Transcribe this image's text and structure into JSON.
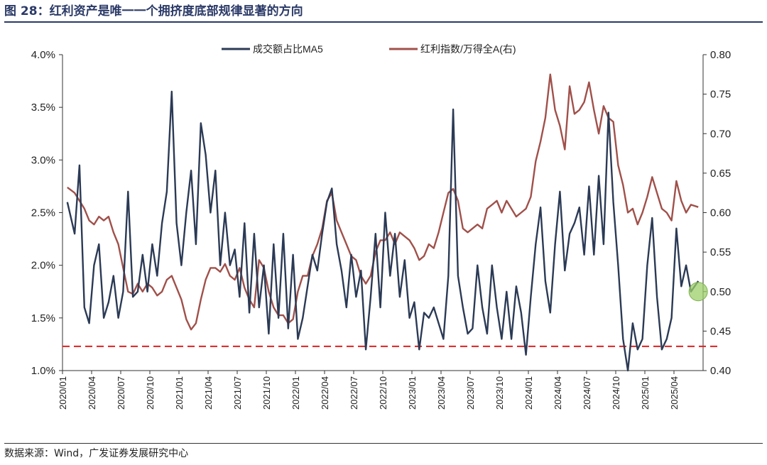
{
  "title": "图 28：红利资产是唯一一个拥挤度底部规律显著的方向",
  "source": "数据来源：Wind，广发证券发展研究中心",
  "chart_data": {
    "type": "line",
    "title": "图 28：红利资产是唯一一个拥挤度底部规律显著的方向",
    "legend_position": "top-center",
    "grid": false,
    "x_ticks": [
      "2020/01",
      "2020/04",
      "2020/07",
      "2020/10",
      "2021/01",
      "2021/04",
      "2021/07",
      "2021/10",
      "2022/01",
      "2022/04",
      "2022/07",
      "2022/10",
      "2023/01",
      "2023/04",
      "2023/07",
      "2023/10",
      "2024/01",
      "2024/04",
      "2024/07",
      "2024/10",
      "2025/01",
      "2025/04"
    ],
    "x_range": [
      "2020/01",
      "2025/06"
    ],
    "y_left": {
      "ticks": [
        "1.0%",
        "1.5%",
        "2.0%",
        "2.5%",
        "3.0%",
        "3.5%",
        "4.0%"
      ],
      "range": [
        1.0,
        4.0
      ],
      "unit": "%"
    },
    "y_right": {
      "ticks": [
        "0.40",
        "0.45",
        "0.50",
        "0.55",
        "0.60",
        "0.65",
        "0.70",
        "0.75",
        "0.80"
      ],
      "range": [
        0.4,
        0.8
      ]
    },
    "series": [
      {
        "name": "成交额占比MA5",
        "axis": "left",
        "color": "#2b3a55",
        "points": [
          [
            "2020/01",
            2.6
          ],
          [
            "2020/02",
            2.3
          ],
          [
            "2020/02",
            2.95
          ],
          [
            "2020/03",
            1.6
          ],
          [
            "2020/03",
            1.45
          ],
          [
            "2020/04",
            2.0
          ],
          [
            "2020/04",
            2.2
          ],
          [
            "2020/05",
            1.5
          ],
          [
            "2020/05",
            1.65
          ],
          [
            "2020/06",
            1.9
          ],
          [
            "2020/06",
            1.5
          ],
          [
            "2020/07",
            1.75
          ],
          [
            "2020/07",
            2.7
          ],
          [
            "2020/08",
            1.7
          ],
          [
            "2020/08",
            1.75
          ],
          [
            "2020/09",
            2.1
          ],
          [
            "2020/09",
            1.75
          ],
          [
            "2020/10",
            2.2
          ],
          [
            "2020/10",
            1.9
          ],
          [
            "2020/11",
            2.4
          ],
          [
            "2020/11",
            2.7
          ],
          [
            "2020/12",
            3.65
          ],
          [
            "2020/12",
            2.4
          ],
          [
            "2021/01",
            2.0
          ],
          [
            "2021/01",
            2.5
          ],
          [
            "2021/02",
            2.9
          ],
          [
            "2021/02",
            2.2
          ],
          [
            "2021/03",
            3.35
          ],
          [
            "2021/03",
            3.05
          ],
          [
            "2021/04",
            2.5
          ],
          [
            "2021/04",
            2.9
          ],
          [
            "2021/05",
            2.0
          ],
          [
            "2021/05",
            2.5
          ],
          [
            "2021/06",
            2.0
          ],
          [
            "2021/06",
            2.15
          ],
          [
            "2021/07",
            1.7
          ],
          [
            "2021/07",
            2.4
          ],
          [
            "2021/08",
            1.55
          ],
          [
            "2021/08",
            2.3
          ],
          [
            "2021/09",
            1.6
          ],
          [
            "2021/09",
            2.0
          ],
          [
            "2021/10",
            1.35
          ],
          [
            "2021/10",
            2.2
          ],
          [
            "2021/11",
            1.5
          ],
          [
            "2021/11",
            2.3
          ],
          [
            "2021/12",
            1.4
          ],
          [
            "2021/12",
            2.1
          ],
          [
            "2022/01",
            1.3
          ],
          [
            "2022/01",
            1.5
          ],
          [
            "2022/02",
            1.8
          ],
          [
            "2022/02",
            2.1
          ],
          [
            "2022/03",
            1.95
          ],
          [
            "2022/03",
            2.3
          ],
          [
            "2022/04",
            2.6
          ],
          [
            "2022/04",
            2.73
          ],
          [
            "2022/05",
            2.2
          ],
          [
            "2022/05",
            1.95
          ],
          [
            "2022/06",
            1.6
          ],
          [
            "2022/06",
            2.1
          ],
          [
            "2022/07",
            1.7
          ],
          [
            "2022/07",
            1.95
          ],
          [
            "2022/08",
            1.2
          ],
          [
            "2022/08",
            1.7
          ],
          [
            "2022/09",
            2.3
          ],
          [
            "2022/09",
            1.6
          ],
          [
            "2022/10",
            2.5
          ],
          [
            "2022/10",
            1.9
          ],
          [
            "2022/11",
            2.3
          ],
          [
            "2022/11",
            1.7
          ],
          [
            "2022/12",
            2.05
          ],
          [
            "2022/12",
            1.5
          ],
          [
            "2023/01",
            1.65
          ],
          [
            "2023/01",
            1.2
          ],
          [
            "2023/02",
            1.55
          ],
          [
            "2023/02",
            1.5
          ],
          [
            "2023/03",
            1.6
          ],
          [
            "2023/03",
            1.45
          ],
          [
            "2023/04",
            1.3
          ],
          [
            "2023/04",
            1.9
          ],
          [
            "2023/05",
            3.48
          ],
          [
            "2023/05",
            1.9
          ],
          [
            "2023/06",
            1.6
          ],
          [
            "2023/06",
            1.35
          ],
          [
            "2023/07",
            1.4
          ],
          [
            "2023/07",
            2.0
          ],
          [
            "2023/08",
            1.6
          ],
          [
            "2023/08",
            1.35
          ],
          [
            "2023/09",
            2.0
          ],
          [
            "2023/09",
            1.6
          ],
          [
            "2023/10",
            1.3
          ],
          [
            "2023/10",
            1.75
          ],
          [
            "2023/11",
            1.3
          ],
          [
            "2023/11",
            1.8
          ],
          [
            "2023/12",
            1.55
          ],
          [
            "2023/12",
            1.15
          ],
          [
            "2024/01",
            1.7
          ],
          [
            "2024/01",
            2.2
          ],
          [
            "2024/02",
            2.55
          ],
          [
            "2024/02",
            1.85
          ],
          [
            "2024/03",
            1.55
          ],
          [
            "2024/03",
            2.2
          ],
          [
            "2024/04",
            2.7
          ],
          [
            "2024/04",
            1.95
          ],
          [
            "2024/05",
            2.3
          ],
          [
            "2024/05",
            2.4
          ],
          [
            "2024/06",
            2.55
          ],
          [
            "2024/06",
            2.1
          ],
          [
            "2024/07",
            2.75
          ],
          [
            "2024/07",
            2.1
          ],
          [
            "2024/08",
            2.85
          ],
          [
            "2024/08",
            2.2
          ],
          [
            "2024/09",
            3.45
          ],
          [
            "2024/09",
            2.6
          ],
          [
            "2024/10",
            2.0
          ],
          [
            "2024/10",
            1.3
          ],
          [
            "2024/11",
            1.0
          ],
          [
            "2024/11",
            1.45
          ],
          [
            "2024/12",
            1.2
          ],
          [
            "2024/12",
            1.3
          ],
          [
            "2025/01",
            2.0
          ],
          [
            "2025/01",
            2.45
          ],
          [
            "2025/02",
            1.7
          ],
          [
            "2025/02",
            1.2
          ],
          [
            "2025/03",
            1.3
          ],
          [
            "2025/03",
            1.5
          ],
          [
            "2025/04",
            2.35
          ],
          [
            "2025/04",
            1.8
          ],
          [
            "2025/05",
            2.0
          ],
          [
            "2025/05",
            1.75
          ],
          [
            "2025/06",
            1.85
          ]
        ]
      },
      {
        "name": "红利指数/万得全A(右)",
        "axis": "right",
        "color": "#a0504a",
        "points": [
          [
            "2020/01",
            0.632
          ],
          [
            "2020/02",
            0.625
          ],
          [
            "2020/02",
            0.615
          ],
          [
            "2020/03",
            0.605
          ],
          [
            "2020/03",
            0.59
          ],
          [
            "2020/04",
            0.585
          ],
          [
            "2020/04",
            0.595
          ],
          [
            "2020/05",
            0.59
          ],
          [
            "2020/05",
            0.595
          ],
          [
            "2020/06",
            0.575
          ],
          [
            "2020/06",
            0.56
          ],
          [
            "2020/07",
            0.53
          ],
          [
            "2020/07",
            0.5
          ],
          [
            "2020/08",
            0.497
          ],
          [
            "2020/08",
            0.51
          ],
          [
            "2020/09",
            0.5
          ],
          [
            "2020/09",
            0.51
          ],
          [
            "2020/10",
            0.505
          ],
          [
            "2020/10",
            0.495
          ],
          [
            "2020/11",
            0.5
          ],
          [
            "2020/11",
            0.515
          ],
          [
            "2020/12",
            0.52
          ],
          [
            "2020/12",
            0.505
          ],
          [
            "2021/01",
            0.49
          ],
          [
            "2021/01",
            0.465
          ],
          [
            "2021/02",
            0.452
          ],
          [
            "2021/02",
            0.46
          ],
          [
            "2021/03",
            0.49
          ],
          [
            "2021/03",
            0.515
          ],
          [
            "2021/04",
            0.53
          ],
          [
            "2021/04",
            0.53
          ],
          [
            "2021/05",
            0.525
          ],
          [
            "2021/05",
            0.535
          ],
          [
            "2021/06",
            0.52
          ],
          [
            "2021/06",
            0.515
          ],
          [
            "2021/07",
            0.53
          ],
          [
            "2021/07",
            0.505
          ],
          [
            "2021/08",
            0.49
          ],
          [
            "2021/08",
            0.48
          ],
          [
            "2021/09",
            0.54
          ],
          [
            "2021/09",
            0.53
          ],
          [
            "2021/10",
            0.5
          ],
          [
            "2021/10",
            0.48
          ],
          [
            "2021/11",
            0.47
          ],
          [
            "2021/11",
            0.47
          ],
          [
            "2021/12",
            0.46
          ],
          [
            "2021/12",
            0.465
          ],
          [
            "2022/01",
            0.5
          ],
          [
            "2022/01",
            0.52
          ],
          [
            "2022/02",
            0.52
          ],
          [
            "2022/02",
            0.545
          ],
          [
            "2022/03",
            0.56
          ],
          [
            "2022/03",
            0.58
          ],
          [
            "2022/04",
            0.615
          ],
          [
            "2022/04",
            0.625
          ],
          [
            "2022/05",
            0.59
          ],
          [
            "2022/05",
            0.575
          ],
          [
            "2022/06",
            0.56
          ],
          [
            "2022/06",
            0.545
          ],
          [
            "2022/07",
            0.54
          ],
          [
            "2022/07",
            0.52
          ],
          [
            "2022/08",
            0.51
          ],
          [
            "2022/08",
            0.52
          ],
          [
            "2022/09",
            0.55
          ],
          [
            "2022/09",
            0.565
          ],
          [
            "2022/10",
            0.565
          ],
          [
            "2022/10",
            0.575
          ],
          [
            "2022/11",
            0.56
          ],
          [
            "2022/11",
            0.575
          ],
          [
            "2022/12",
            0.57
          ],
          [
            "2022/12",
            0.565
          ],
          [
            "2023/01",
            0.555
          ],
          [
            "2023/01",
            0.54
          ],
          [
            "2023/02",
            0.545
          ],
          [
            "2023/02",
            0.56
          ],
          [
            "2023/03",
            0.555
          ],
          [
            "2023/03",
            0.575
          ],
          [
            "2023/04",
            0.6
          ],
          [
            "2023/04",
            0.625
          ],
          [
            "2023/05",
            0.63
          ],
          [
            "2023/05",
            0.615
          ],
          [
            "2023/06",
            0.58
          ],
          [
            "2023/06",
            0.575
          ],
          [
            "2023/07",
            0.58
          ],
          [
            "2023/07",
            0.585
          ],
          [
            "2023/08",
            0.58
          ],
          [
            "2023/08",
            0.605
          ],
          [
            "2023/09",
            0.61
          ],
          [
            "2023/09",
            0.615
          ],
          [
            "2023/10",
            0.6
          ],
          [
            "2023/10",
            0.615
          ],
          [
            "2023/11",
            0.605
          ],
          [
            "2023/11",
            0.595
          ],
          [
            "2023/12",
            0.6
          ],
          [
            "2023/12",
            0.605
          ],
          [
            "2024/01",
            0.62
          ],
          [
            "2024/01",
            0.665
          ],
          [
            "2024/02",
            0.69
          ],
          [
            "2024/02",
            0.72
          ],
          [
            "2024/03",
            0.775
          ],
          [
            "2024/03",
            0.73
          ],
          [
            "2024/04",
            0.71
          ],
          [
            "2024/04",
            0.68
          ],
          [
            "2024/05",
            0.76
          ],
          [
            "2024/05",
            0.725
          ],
          [
            "2024/06",
            0.73
          ],
          [
            "2024/06",
            0.74
          ],
          [
            "2024/07",
            0.765
          ],
          [
            "2024/07",
            0.73
          ],
          [
            "2024/08",
            0.7
          ],
          [
            "2024/08",
            0.735
          ],
          [
            "2024/09",
            0.72
          ],
          [
            "2024/09",
            0.715
          ],
          [
            "2024/10",
            0.66
          ],
          [
            "2024/10",
            0.635
          ],
          [
            "2024/11",
            0.6
          ],
          [
            "2024/11",
            0.605
          ],
          [
            "2024/12",
            0.585
          ],
          [
            "2024/12",
            0.6
          ],
          [
            "2025/01",
            0.62
          ],
          [
            "2025/01",
            0.645
          ],
          [
            "2025/02",
            0.625
          ],
          [
            "2025/02",
            0.605
          ],
          [
            "2025/03",
            0.6
          ],
          [
            "2025/03",
            0.59
          ],
          [
            "2025/04",
            0.64
          ],
          [
            "2025/04",
            0.615
          ],
          [
            "2025/05",
            0.6
          ],
          [
            "2025/05",
            0.61
          ],
          [
            "2025/06",
            0.607
          ]
        ]
      }
    ],
    "reference_line": {
      "axis": "left",
      "value": 1.23,
      "color": "#e02020",
      "style": "dashed"
    },
    "marker": {
      "at": "2025/06",
      "axis": "left",
      "value": 1.75,
      "color": "#9ccf6a"
    }
  }
}
